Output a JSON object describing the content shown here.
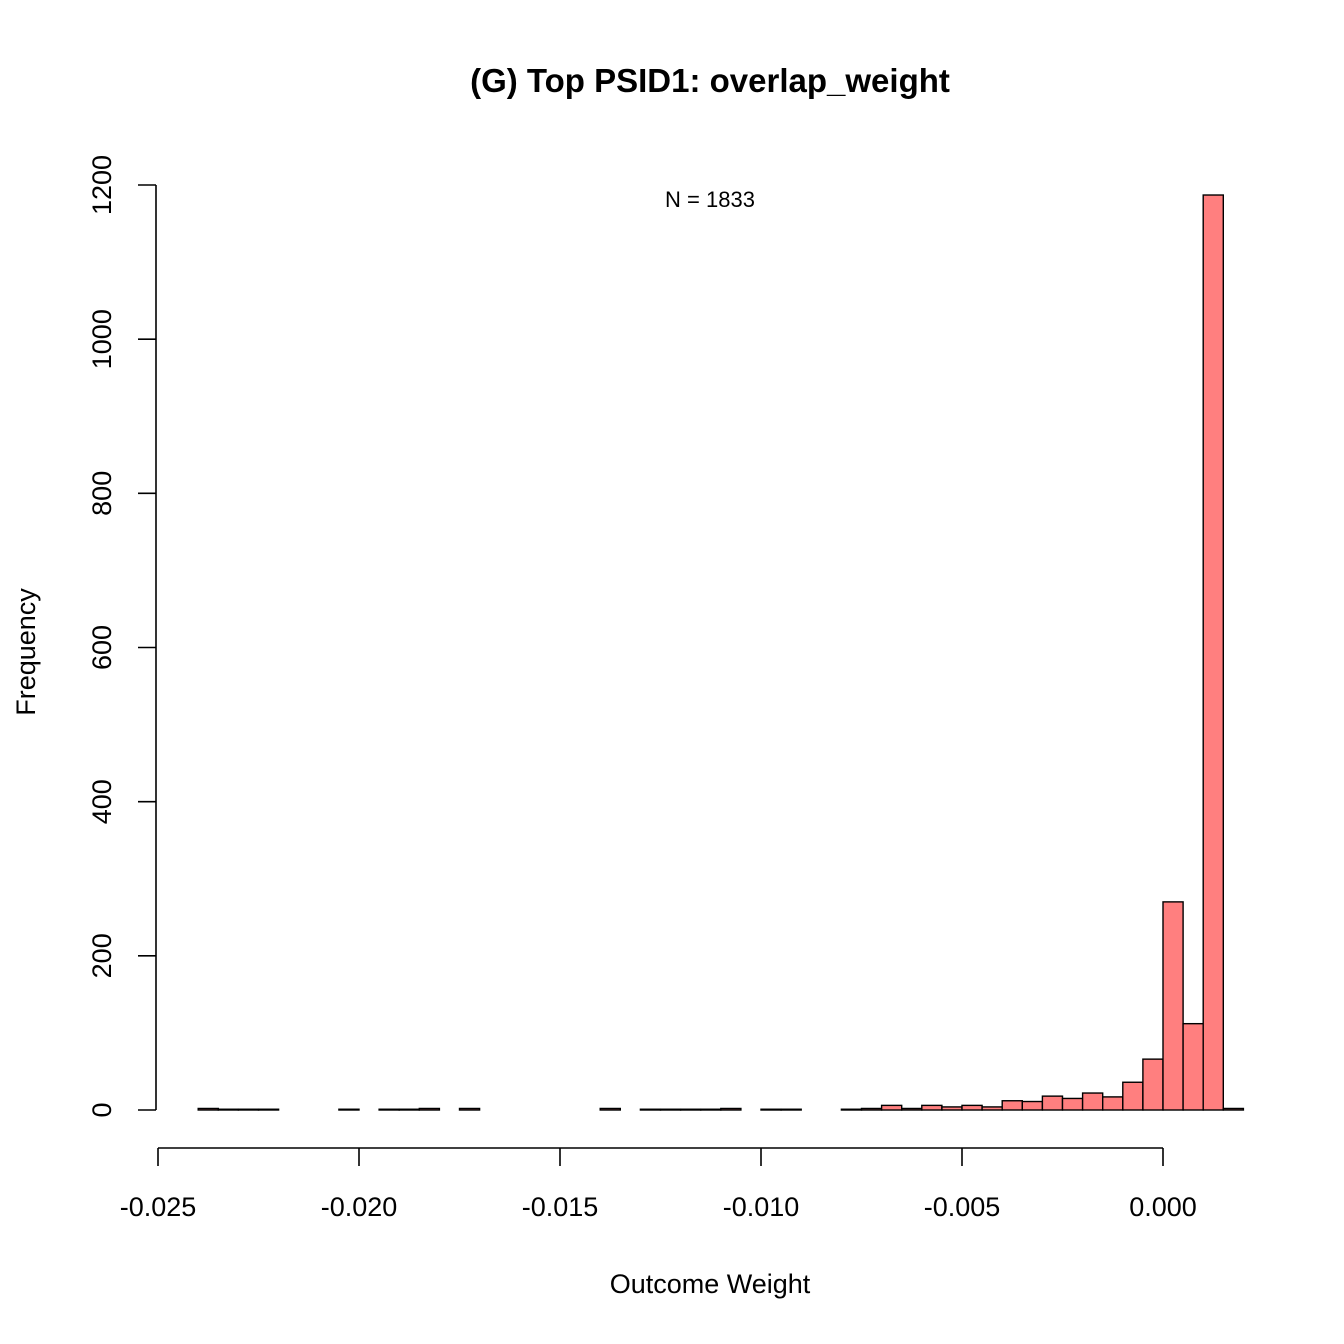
{
  "chart_data": {
    "type": "bar",
    "title": "(G) Top PSID1: overlap_weight",
    "xlabel": "Outcome Weight",
    "ylabel": "Frequency",
    "annotation": "N = 1833",
    "bar_color": "#FF7F7F",
    "edge_color": "#000000",
    "xlim": [
      -0.025,
      0.0015
    ],
    "ylim": [
      0,
      1200
    ],
    "x_ticks": [
      -0.025,
      -0.02,
      -0.015,
      -0.01,
      -0.005,
      0.0
    ],
    "x_tick_labels": [
      "-0.025",
      "-0.020",
      "-0.015",
      "-0.010",
      "-0.005",
      "0.000"
    ],
    "y_ticks": [
      0,
      200,
      400,
      600,
      800,
      1000,
      1200
    ],
    "y_tick_labels": [
      "0",
      "200",
      "400",
      "600",
      "800",
      "1000",
      "1200"
    ],
    "bin_width": 0.0005,
    "bin_start": -0.024,
    "counts": [
      2,
      1,
      1,
      1,
      0,
      0,
      0,
      1,
      0,
      1,
      1,
      2,
      0,
      2,
      0,
      0,
      0,
      0,
      0,
      0,
      2,
      0,
      1,
      1,
      1,
      1,
      2,
      0,
      1,
      1,
      0,
      0,
      1,
      2,
      6,
      2,
      6,
      4,
      6,
      4,
      12,
      11,
      18,
      15,
      22,
      17,
      36,
      66,
      270,
      112,
      1187,
      2
    ],
    "n": 1833
  }
}
